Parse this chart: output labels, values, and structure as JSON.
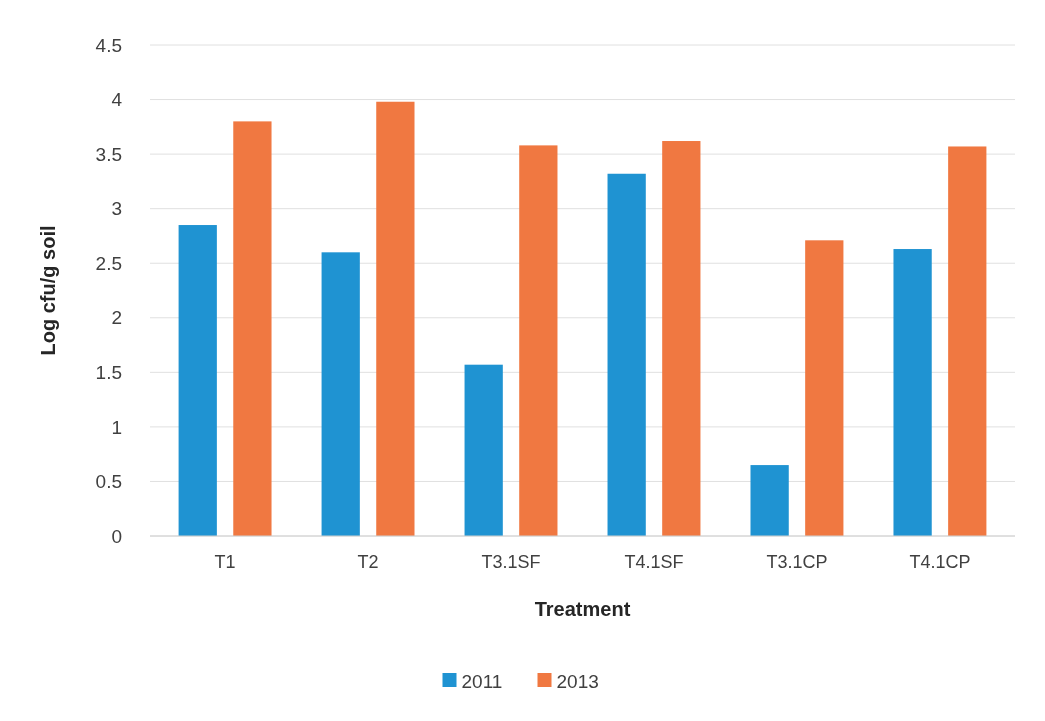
{
  "chart_data": {
    "type": "bar",
    "xlabel": "Treatment",
    "ylabel": "Log cfu/g soil",
    "categories": [
      "T1",
      "T2",
      "T3.1SF",
      "T4.1SF",
      "T3.1CP",
      "T4.1CP"
    ],
    "series": [
      {
        "name": "2011",
        "color": "#1f93d2",
        "values": [
          2.85,
          2.6,
          1.57,
          3.32,
          0.65,
          2.63
        ]
      },
      {
        "name": "2013",
        "color": "#f07841",
        "values": [
          3.8,
          3.98,
          3.58,
          3.62,
          2.71,
          3.57
        ]
      }
    ],
    "ylim": [
      0,
      4.5
    ],
    "yticks": [
      0,
      0.5,
      1,
      1.5,
      2,
      2.5,
      3,
      3.5,
      4,
      4.5
    ],
    "grid": "y",
    "legend": "bottom"
  }
}
